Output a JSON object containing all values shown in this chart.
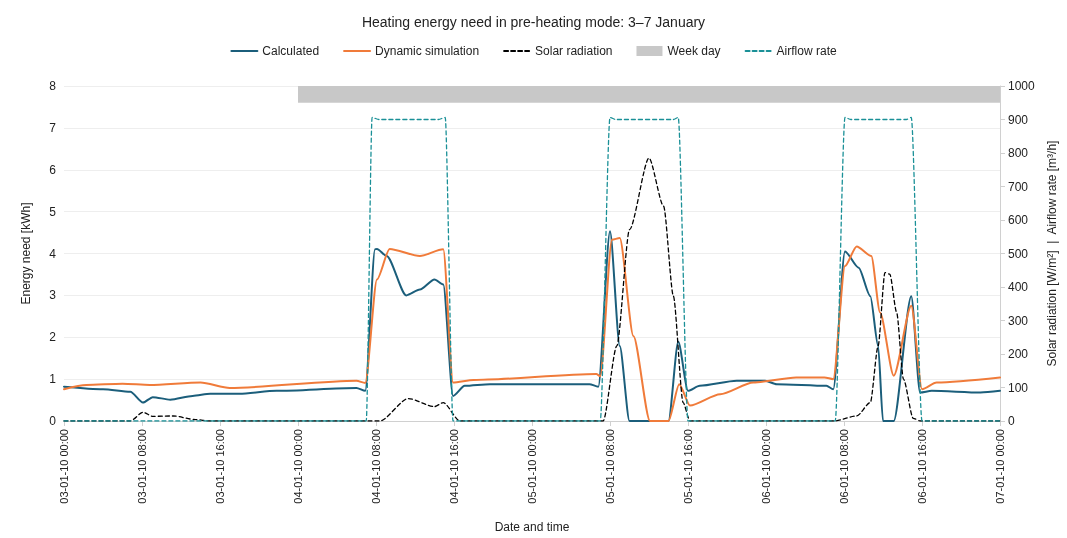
{
  "chart_data": {
    "type": "line",
    "title": "Heating energy need in pre-heating mode: 3–7 January",
    "xlabel": "Date and time",
    "ylabel": "Energy need [kWh]",
    "y2label": "Solar radiation [W/m²]  |  Airflow rate [m³/h]",
    "xlim": [
      "--01-03T00:00",
      "--01-07T00:00"
    ],
    "xticks": [
      {
        "value": "--01-03T00:00",
        "label": "03-01-10 00:00"
      },
      {
        "value": "--01-03T08:00",
        "label": "03-01-10 08:00"
      },
      {
        "value": "--01-03T16:00",
        "label": "03-01-10 16:00"
      },
      {
        "value": "--01-04T00:00",
        "label": "04-01-10 00:00"
      },
      {
        "value": "--01-04T08:00",
        "label": "04-01-10 08:00"
      },
      {
        "value": "--01-04T16:00",
        "label": "04-01-10 16:00"
      },
      {
        "value": "--01-05T00:00",
        "label": "05-01-10 00:00"
      },
      {
        "value": "--01-05T08:00",
        "label": "05-01-10 08:00"
      },
      {
        "value": "--01-05T16:00",
        "label": "05-01-10 16:00"
      },
      {
        "value": "--01-06T00:00",
        "label": "06-01-10 00:00"
      },
      {
        "value": "--01-06T08:00",
        "label": "06-01-10 08:00"
      },
      {
        "value": "--01-06T16:00",
        "label": "06-01-10 16:00"
      },
      {
        "value": "--01-07T00:00",
        "label": "07-01-10 00:00"
      }
    ],
    "ylim": [
      0,
      8
    ],
    "yticks": [
      0,
      1,
      2,
      3,
      4,
      5,
      6,
      7,
      8
    ],
    "y2lim": [
      0,
      1000
    ],
    "y2ticks": [
      0,
      100,
      200,
      300,
      400,
      500,
      600,
      700,
      800,
      900,
      1000
    ],
    "grid": "y",
    "legend": "top",
    "marker": "none",
    "bands": [
      {
        "axis": "x",
        "from": "--01-04T00:00",
        "to": "--01-07T00:00",
        "label": "Week day",
        "color": "#c8c8c8"
      }
    ],
    "series": [
      {
        "name": "Calculated",
        "color": "#1b5e7b",
        "line_style": "solid",
        "x": [
          "--01-03T00:00",
          "--01-03T04:00",
          "--01-03T06:48",
          "--01-03T08:06",
          "--01-03T09:06",
          "--01-03T10:54",
          "--01-03T13:12",
          "--01-03T15:00",
          "--01-03T18:00",
          "--01-03T21:48",
          "--01-04T06:00",
          "--01-04T06:54",
          "--01-04T07:54",
          "--01-04T08:06",
          "--01-04T09:06",
          "--01-04T11:06",
          "--01-04T12:30",
          "--01-04T14:00",
          "--01-04T14:54",
          "--01-04T15:54",
          "--01-04T17:06",
          "--01-04T19:42",
          "--01-05T05:54",
          "--01-05T06:48",
          "--01-05T08:00",
          "--01-05T09:00",
          "--01-05T10:00",
          "--01-05T14:00",
          "--01-05T15:00",
          "--01-05T16:00",
          "--01-05T17:12",
          "--01-05T21:00",
          "--01-05T23:54",
          "--01-06T01:06",
          "--01-06T06:12",
          "--01-06T06:54",
          "--01-06T08:06",
          "--01-06T09:30",
          "--01-06T10:42",
          "--01-06T11:30",
          "--01-06T12:00",
          "--01-06T13:06",
          "--01-06T14:54",
          "--01-06T15:48",
          "--01-06T17:00",
          "--01-06T22:00",
          "--01-07T00:00"
        ],
        "values": [
          0.82,
          0.76,
          0.7,
          0.44,
          0.57,
          0.51,
          0.6,
          0.65,
          0.65,
          0.72,
          0.79,
          0.72,
          4.1,
          4.11,
          3.94,
          3.0,
          3.14,
          3.38,
          3.26,
          0.6,
          0.84,
          0.88,
          0.88,
          0.82,
          4.53,
          1.79,
          0,
          0,
          1.89,
          0.72,
          0.84,
          0.96,
          0.96,
          0.88,
          0.84,
          0.76,
          4.05,
          3.66,
          2.98,
          1.79,
          0,
          0,
          2.98,
          0.68,
          0.72,
          0.68,
          0.72
        ]
      },
      {
        "name": "Dynamic simulation",
        "color": "#f07b3a",
        "line_style": "solid",
        "x": [
          "--01-03T00:00",
          "--01-03T02:18",
          "--01-03T06:00",
          "--01-03T08:48",
          "--01-03T14:00",
          "--01-03T17:00",
          "--01-04T06:00",
          "--01-04T06:54",
          "--01-04T08:06",
          "--01-04T09:24",
          "--01-04T12:30",
          "--01-04T14:54",
          "--01-04T15:54",
          "--01-04T18:00",
          "--01-05T06:36",
          "--01-05T07:00",
          "--01-05T08:12",
          "--01-05T09:00",
          "--01-05T10:24",
          "--01-05T12:06",
          "--01-05T14:00",
          "--01-05T15:06",
          "--01-05T16:12",
          "--01-05T19:18",
          "--01-05T22:42",
          "--01-06T03:06",
          "--01-06T06:00",
          "--01-06T06:54",
          "--01-06T08:06",
          "--01-06T09:18",
          "--01-06T10:48",
          "--01-06T11:42",
          "--01-06T13:06",
          "--01-06T14:54",
          "--01-06T16:00",
          "--01-06T17:30",
          "--01-07T00:00"
        ],
        "values": [
          0.76,
          0.86,
          0.89,
          0.86,
          0.92,
          0.79,
          0.96,
          0.91,
          3.38,
          4.11,
          3.94,
          4.1,
          0.92,
          0.98,
          1.12,
          1.07,
          4.33,
          4.37,
          2.03,
          0,
          0,
          0.88,
          0.37,
          0.64,
          0.92,
          1.04,
          1.04,
          1.0,
          3.7,
          4.17,
          3.94,
          2.59,
          1.08,
          2.75,
          0.76,
          0.92,
          1.04
        ]
      },
      {
        "name": "Solar radiation",
        "color": "#000000",
        "line_style": "dashed",
        "axis": "y2",
        "x": [
          "--01-03T00:00",
          "--01-03T06:48",
          "--01-03T08:06",
          "--01-03T09:06",
          "--01-03T11:12",
          "--01-03T13:30",
          "--01-03T15:00",
          "--01-04T08:24",
          "--01-04T11:18",
          "--01-04T14:00",
          "--01-04T14:54",
          "--01-04T16:36",
          "--01-05T07:18",
          "--01-05T08:42",
          "--01-05T10:00",
          "--01-05T12:00",
          "--01-05T13:30",
          "--01-05T14:30",
          "--01-05T15:30",
          "--01-05T16:12",
          "--01-06T07:00",
          "--01-06T09:18",
          "--01-06T10:42",
          "--01-06T11:30",
          "--01-06T12:12",
          "--01-06T12:42",
          "--01-06T13:24",
          "--01-06T14:06",
          "--01-06T15:06",
          "--01-06T15:48",
          "--01-07T00:00"
        ],
        "values": [
          0,
          0,
          26,
          14,
          15,
          4,
          0,
          0,
          67,
          43,
          55,
          0,
          0,
          224,
          571,
          785,
          641,
          373,
          55,
          0,
          0,
          15,
          55,
          224,
          443,
          438,
          324,
          125,
          8,
          0,
          0
        ]
      },
      {
        "name": "Airflow rate",
        "color": "#1a9097",
        "line_style": "dashed",
        "axis": "y2",
        "x": [
          "--01-03T00:00",
          "--01-04T07:00",
          "--01-04T07:36",
          "--01-04T08:18",
          "--01-04T14:24",
          "--01-04T15:06",
          "--01-04T15:54",
          "--01-05T07:00",
          "--01-05T08:00",
          "--01-05T08:36",
          "--01-05T14:30",
          "--01-05T15:00",
          "--01-05T16:00",
          "--01-06T07:06",
          "--01-06T08:06",
          "--01-06T08:42",
          "--01-06T14:24",
          "--01-06T14:54",
          "--01-06T16:00",
          "--01-07T00:00"
        ],
        "values": [
          0,
          0,
          906,
          900,
          900,
          906,
          0,
          0,
          906,
          900,
          900,
          906,
          0,
          0,
          906,
          900,
          900,
          906,
          0,
          0
        ]
      }
    ]
  }
}
